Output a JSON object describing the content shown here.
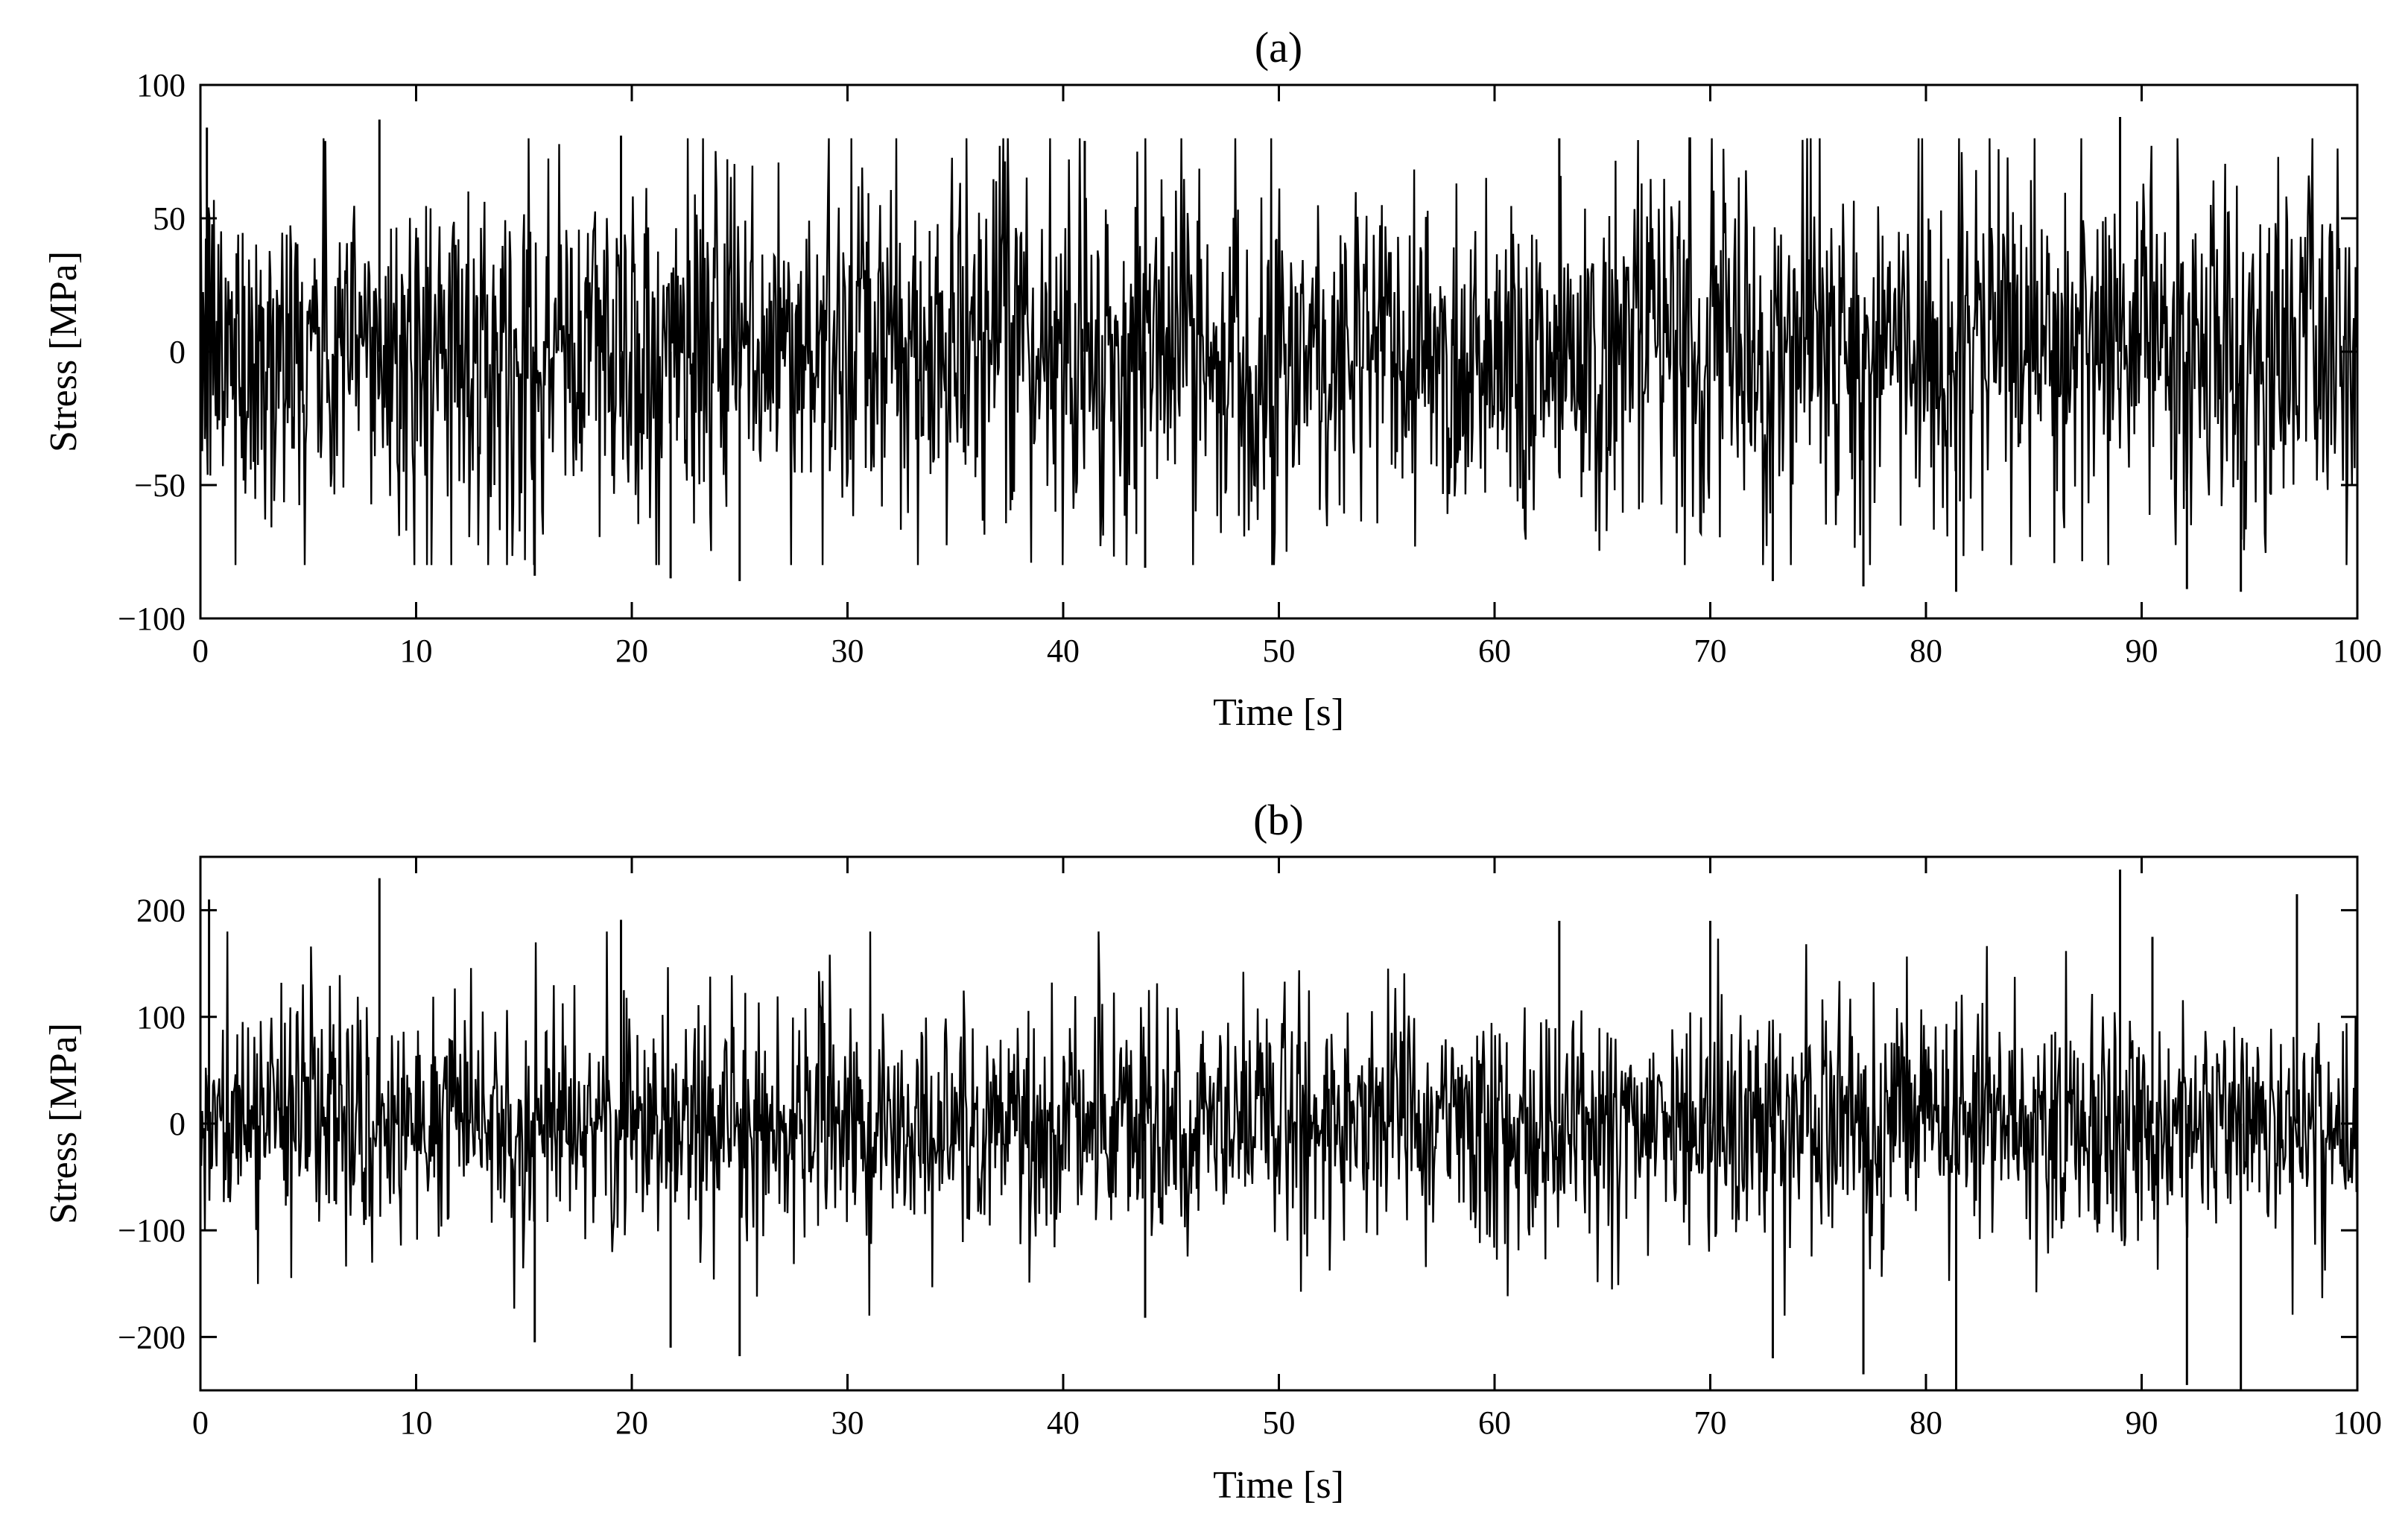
{
  "chart_data": [
    {
      "type": "line",
      "title": "(a)",
      "xlabel": "Time [s]",
      "ylabel": "Stress [MPa]",
      "xlim": [
        0,
        100
      ],
      "ylim": [
        -100,
        100
      ],
      "xticks": [
        0,
        10,
        20,
        30,
        40,
        50,
        60,
        70,
        80,
        90,
        100
      ],
      "yticks": [
        -100,
        -50,
        0,
        50,
        100
      ],
      "ytick_labels": [
        "−100",
        "−50",
        "0",
        "50",
        "100"
      ],
      "grid": false,
      "line_color": "#000000",
      "signal": {
        "description_values": "dense random stress time history",
        "sample_count": 2400,
        "typical_range": [
          -60,
          60
        ],
        "max_peak": 88,
        "min_peak": -90
      },
      "series": [
        {
          "peaks": [
            {
              "x": 0.3,
              "y": 84
            },
            {
              "x": 8.3,
              "y": 87
            },
            {
              "x": 19.5,
              "y": 81
            },
            {
              "x": 41.0,
              "y": 79
            },
            {
              "x": 63.0,
              "y": 80
            },
            {
              "x": 89.0,
              "y": 88
            },
            {
              "x": 15.5,
              "y": -84
            },
            {
              "x": 21.8,
              "y": -85
            },
            {
              "x": 25.0,
              "y": -86
            },
            {
              "x": 43.8,
              "y": -81
            },
            {
              "x": 72.9,
              "y": -86
            },
            {
              "x": 77.1,
              "y": -88
            },
            {
              "x": 81.4,
              "y": -90
            },
            {
              "x": 94.6,
              "y": -90
            },
            {
              "x": 92.1,
              "y": -89
            }
          ]
        }
      ]
    },
    {
      "type": "line",
      "title": "(b)",
      "xlabel": "Time [s]",
      "ylabel": "Stress [MPa]",
      "xlim": [
        0,
        100
      ],
      "ylim": [
        -250,
        250
      ],
      "xticks": [
        0,
        10,
        20,
        30,
        40,
        50,
        60,
        70,
        80,
        90,
        100
      ],
      "yticks": [
        -200,
        -100,
        0,
        100,
        200
      ],
      "ytick_labels": [
        "−200",
        "−100",
        "0",
        "100",
        "200"
      ],
      "grid": false,
      "line_color": "#000000",
      "signal": {
        "description_values": "dense random stress time history with higher peaks",
        "sample_count": 2400,
        "typical_range": [
          -100,
          100
        ],
        "max_peak": 238,
        "min_peak": -250
      },
      "series": [
        {
          "peaks": [
            {
              "x": 0.4,
              "y": 210
            },
            {
              "x": 8.3,
              "y": 230
            },
            {
              "x": 19.5,
              "y": 191
            },
            {
              "x": 63.0,
              "y": 190
            },
            {
              "x": 70.0,
              "y": 190
            },
            {
              "x": 89.0,
              "y": 238
            },
            {
              "x": 97.2,
              "y": 215
            },
            {
              "x": 90.5,
              "y": 175
            },
            {
              "x": 15.5,
              "y": -205
            },
            {
              "x": 21.8,
              "y": -210
            },
            {
              "x": 25.0,
              "y": -218
            },
            {
              "x": 43.8,
              "y": -182
            },
            {
              "x": 72.9,
              "y": -220
            },
            {
              "x": 77.1,
              "y": -235
            },
            {
              "x": 81.4,
              "y": -250
            },
            {
              "x": 92.1,
              "y": -245
            },
            {
              "x": 94.6,
              "y": -250
            }
          ]
        }
      ]
    }
  ]
}
